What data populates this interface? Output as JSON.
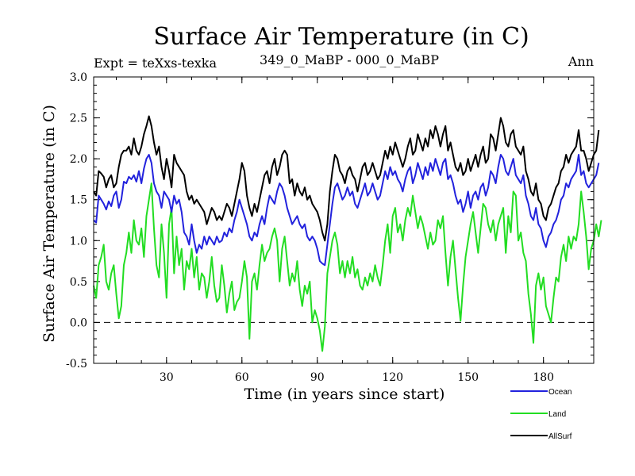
{
  "chart_data": {
    "type": "line",
    "title": "Surface Air Temperature (in C)",
    "subtitle_left": "Expt = teXxs-texka",
    "subtitle_center": "349_0_MaBP - 000_0_MaBP",
    "subtitle_right": "Ann",
    "xlabel": "Time (in years since start)",
    "ylabel": "Surface Air Temperature (in C)",
    "xlim": [
      1,
      200
    ],
    "ylim": [
      -0.5,
      3.0
    ],
    "xticks": [
      30,
      60,
      90,
      120,
      150,
      180
    ],
    "yticks": [
      "-0.5",
      "0.0",
      "0.5",
      "1.0",
      "1.5",
      "2.0",
      "2.5",
      "3.0"
    ],
    "zero_line": true,
    "legend_position": "bottom-right, below plot",
    "x_start": 1,
    "series": [
      {
        "name": "Ocean",
        "color": "#2222dd",
        "values": [
          1.25,
          1.22,
          1.55,
          1.5,
          1.45,
          1.38,
          1.48,
          1.42,
          1.55,
          1.6,
          1.4,
          1.5,
          1.72,
          1.7,
          1.78,
          1.75,
          1.8,
          1.72,
          1.85,
          1.7,
          1.88,
          2.0,
          2.05,
          1.95,
          1.7,
          1.6,
          1.55,
          1.4,
          1.6,
          1.55,
          1.5,
          1.35,
          1.55,
          1.45,
          1.5,
          1.35,
          1.1,
          1.05,
          0.95,
          1.2,
          1.0,
          0.85,
          0.95,
          0.9,
          1.05,
          0.95,
          1.05,
          1.0,
          0.95,
          1.05,
          0.98,
          1.0,
          1.1,
          1.05,
          1.15,
          1.1,
          1.25,
          1.35,
          1.5,
          1.4,
          1.3,
          1.2,
          1.05,
          1.0,
          1.1,
          1.05,
          1.2,
          1.3,
          1.2,
          1.4,
          1.55,
          1.5,
          1.45,
          1.6,
          1.7,
          1.65,
          1.55,
          1.4,
          1.3,
          1.2,
          1.25,
          1.3,
          1.2,
          1.15,
          1.2,
          1.05,
          1.0,
          1.05,
          1.0,
          0.9,
          0.75,
          0.72,
          0.7,
          0.95,
          1.2,
          1.45,
          1.65,
          1.7,
          1.6,
          1.5,
          1.55,
          1.65,
          1.55,
          1.6,
          1.45,
          1.4,
          1.5,
          1.6,
          1.7,
          1.55,
          1.6,
          1.7,
          1.6,
          1.5,
          1.55,
          1.7,
          1.85,
          1.75,
          1.9,
          1.8,
          1.85,
          1.75,
          1.7,
          1.6,
          1.75,
          1.85,
          1.9,
          1.7,
          1.8,
          1.95,
          1.85,
          1.75,
          1.9,
          1.8,
          1.95,
          1.85,
          2.0,
          1.9,
          1.8,
          1.95,
          2.0,
          1.75,
          1.8,
          1.7,
          1.55,
          1.45,
          1.5,
          1.35,
          1.45,
          1.6,
          1.4,
          1.55,
          1.6,
          1.5,
          1.65,
          1.7,
          1.55,
          1.65,
          1.85,
          1.8,
          1.7,
          1.9,
          2.05,
          2.0,
          1.85,
          1.8,
          1.9,
          2.0,
          1.8,
          1.75,
          1.7,
          1.8,
          1.55,
          1.45,
          1.3,
          1.25,
          1.4,
          1.2,
          1.15,
          1.0,
          0.92,
          1.05,
          1.1,
          1.2,
          1.25,
          1.35,
          1.5,
          1.55,
          1.7,
          1.65,
          1.75,
          1.8,
          1.85,
          2.05,
          1.8,
          1.85,
          1.7,
          1.65,
          1.7,
          1.75,
          1.8,
          1.95
        ]
      },
      {
        "name": "Land",
        "color": "#22dd22",
        "values": [
          0.45,
          0.3,
          0.7,
          0.8,
          0.95,
          0.5,
          0.4,
          0.6,
          0.7,
          0.35,
          0.05,
          0.2,
          0.7,
          0.85,
          1.1,
          0.85,
          1.25,
          1.0,
          0.95,
          1.15,
          0.8,
          1.3,
          1.5,
          1.7,
          1.15,
          0.7,
          0.55,
          1.2,
          0.85,
          0.3,
          1.2,
          1.4,
          0.6,
          1.05,
          0.7,
          0.9,
          0.4,
          0.75,
          0.65,
          0.9,
          0.55,
          0.8,
          0.4,
          0.6,
          0.55,
          0.3,
          0.5,
          0.8,
          0.45,
          0.25,
          0.3,
          0.7,
          0.45,
          0.12,
          0.35,
          0.5,
          0.15,
          0.25,
          0.3,
          0.5,
          0.75,
          0.55,
          -0.2,
          0.5,
          0.6,
          0.4,
          0.7,
          0.95,
          0.75,
          0.85,
          0.9,
          1.05,
          1.15,
          1.0,
          0.5,
          0.9,
          1.05,
          0.75,
          0.45,
          0.6,
          0.5,
          0.75,
          0.4,
          0.2,
          0.45,
          0.35,
          0.5,
          0.0,
          0.15,
          0.05,
          -0.1,
          -0.35,
          -0.05,
          0.6,
          0.8,
          1.0,
          1.1,
          0.95,
          0.6,
          0.75,
          0.55,
          0.75,
          0.6,
          0.8,
          0.55,
          0.65,
          0.45,
          0.4,
          0.55,
          0.45,
          0.6,
          0.5,
          0.7,
          0.55,
          0.45,
          0.7,
          1.0,
          1.2,
          0.85,
          1.3,
          1.4,
          1.1,
          1.2,
          1.0,
          1.25,
          1.4,
          1.3,
          1.55,
          1.35,
          1.15,
          1.3,
          1.2,
          1.05,
          0.9,
          1.1,
          0.95,
          1.0,
          1.25,
          1.15,
          1.3,
          0.85,
          0.45,
          0.8,
          1.0,
          0.65,
          0.3,
          0.02,
          0.45,
          0.8,
          1.0,
          1.2,
          1.35,
          1.1,
          0.85,
          1.15,
          1.45,
          1.4,
          1.2,
          1.1,
          1.25,
          1.0,
          1.2,
          1.3,
          1.4,
          0.85,
          1.3,
          1.1,
          1.6,
          1.55,
          1.0,
          1.1,
          0.85,
          0.75,
          0.35,
          0.1,
          -0.25,
          0.45,
          0.6,
          0.4,
          0.55,
          0.2,
          0.1,
          0.0,
          0.3,
          0.55,
          0.5,
          0.8,
          0.95,
          0.75,
          1.05,
          0.9,
          1.05,
          1.0,
          1.2,
          1.6,
          1.35,
          1.05,
          0.65,
          0.9,
          1.0,
          1.2,
          1.05,
          1.25
        ]
      },
      {
        "name": "AllSurf",
        "color": "#000000",
        "values": [
          1.6,
          1.55,
          1.85,
          1.82,
          1.78,
          1.65,
          1.75,
          1.8,
          1.65,
          1.7,
          1.9,
          2.05,
          2.1,
          2.1,
          2.15,
          2.05,
          2.25,
          2.1,
          2.05,
          2.15,
          2.3,
          2.4,
          2.52,
          2.4,
          2.2,
          2.05,
          2.15,
          1.9,
          1.75,
          2.0,
          1.85,
          1.65,
          2.05,
          1.95,
          1.9,
          1.85,
          1.8,
          1.6,
          1.5,
          1.55,
          1.45,
          1.5,
          1.45,
          1.4,
          1.35,
          1.2,
          1.3,
          1.4,
          1.35,
          1.25,
          1.3,
          1.25,
          1.35,
          1.45,
          1.4,
          1.3,
          1.45,
          1.6,
          1.75,
          1.95,
          1.85,
          1.55,
          1.4,
          1.3,
          1.45,
          1.35,
          1.5,
          1.65,
          1.8,
          1.85,
          1.7,
          1.9,
          2.0,
          1.8,
          1.9,
          2.05,
          2.1,
          2.05,
          1.7,
          1.75,
          1.55,
          1.7,
          1.6,
          1.55,
          1.65,
          1.5,
          1.55,
          1.45,
          1.4,
          1.35,
          1.25,
          1.1,
          1.0,
          1.2,
          1.6,
          1.85,
          2.05,
          2.0,
          1.85,
          1.8,
          1.7,
          1.85,
          1.9,
          1.8,
          1.75,
          1.6,
          1.75,
          1.9,
          1.95,
          1.8,
          1.85,
          1.95,
          1.85,
          1.75,
          1.8,
          1.95,
          2.1,
          2.0,
          2.15,
          2.05,
          2.2,
          2.1,
          2.0,
          1.9,
          2.0,
          2.15,
          2.25,
          2.05,
          2.1,
          2.3,
          2.2,
          2.1,
          2.25,
          2.15,
          2.35,
          2.25,
          2.4,
          2.3,
          2.15,
          2.3,
          2.4,
          2.1,
          2.2,
          2.05,
          1.9,
          1.85,
          1.95,
          1.8,
          1.85,
          2.0,
          1.85,
          1.95,
          2.05,
          1.9,
          2.05,
          2.15,
          1.95,
          2.0,
          2.3,
          2.25,
          2.1,
          2.3,
          2.5,
          2.4,
          2.2,
          2.15,
          2.3,
          2.35,
          2.15,
          2.1,
          2.05,
          2.15,
          1.85,
          1.75,
          1.6,
          1.55,
          1.7,
          1.5,
          1.45,
          1.3,
          1.25,
          1.4,
          1.45,
          1.55,
          1.65,
          1.7,
          1.85,
          1.9,
          2.05,
          1.95,
          2.05,
          2.1,
          2.15,
          2.35,
          2.1,
          2.1,
          2.0,
          1.85,
          1.95,
          2.05,
          2.1,
          2.35
        ]
      }
    ]
  }
}
